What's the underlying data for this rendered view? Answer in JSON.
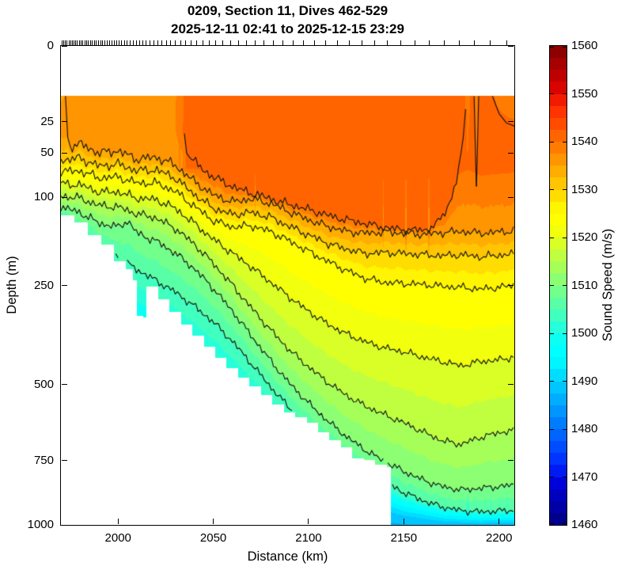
{
  "figure": {
    "title_line1": "0209, Section 11, Dives 462-529",
    "title_line2": "2025-12-11 02:41 to 2025-12-15 23:29",
    "background": "#ffffff",
    "contour_line_color": "#141414"
  },
  "axes": {
    "xlabel": "Distance (km)",
    "ylabel": "Depth (m)",
    "x_range": [
      1970,
      2208
    ],
    "depth_range": [
      0,
      1000
    ],
    "depth_scale": "sqrt",
    "x_ticks": [
      2000,
      2050,
      2100,
      2150,
      2200
    ],
    "x_tick_labels": [
      "2000",
      "2050",
      "2100",
      "2150",
      "2200"
    ],
    "y_ticks": [
      0,
      25,
      50,
      100,
      250,
      500,
      750,
      1000
    ],
    "y_tick_labels": [
      "0",
      "25",
      "50",
      "100",
      "250",
      "500",
      "750",
      "1000"
    ]
  },
  "colorbar": {
    "label": "Sound Speed (m/s)",
    "min": 1460,
    "max": 1560,
    "segment_step": 2.5,
    "tick_values": [
      1460,
      1470,
      1480,
      1490,
      1500,
      1510,
      1520,
      1530,
      1540,
      1550,
      1560
    ],
    "tick_labels": [
      "1460",
      "1470",
      "1480",
      "1490",
      "1500",
      "1510",
      "1520",
      "1530",
      "1540",
      "1550",
      "1560"
    ],
    "colormap": "jet"
  },
  "chart_data": {
    "type": "heatmap",
    "subtype": "filled-contour-ocean-section",
    "title": "0209, Section 11, Dives 462-529",
    "subtitle": "2025-12-11 02:41 to 2025-12-15 23:29",
    "xlabel": "Distance (km)",
    "ylabel": "Depth (m)",
    "value_label": "Sound Speed (m/s)",
    "x_units": "km",
    "y_units": "m",
    "value_units": "m/s",
    "surface_depth_m": 11,
    "band_step": 2.5,
    "contour_line_levels": [
      1540,
      1535,
      1530,
      1525,
      1520,
      1515,
      1510,
      1505
    ],
    "surface_values": [
      [
        1970,
        1534.7
      ],
      [
        1973,
        1535.2
      ],
      [
        1976,
        1536.5
      ],
      [
        1982,
        1536.8
      ],
      [
        1988,
        1536.6
      ],
      [
        1994,
        1536.9
      ],
      [
        2000,
        1536.6
      ],
      [
        2006,
        1536.9
      ],
      [
        2012,
        1537.0
      ],
      [
        2018,
        1537.1
      ],
      [
        2024,
        1537.2
      ],
      [
        2030,
        1537.4
      ],
      [
        2033,
        1538.0
      ],
      [
        2035,
        1540.6
      ],
      [
        2040,
        1541.1
      ],
      [
        2050,
        1541.4
      ],
      [
        2065,
        1541.6
      ],
      [
        2080,
        1541.8
      ],
      [
        2100,
        1541.9
      ],
      [
        2120,
        1541.8
      ],
      [
        2140,
        1541.5
      ],
      [
        2155,
        1541.2
      ],
      [
        2168,
        1541.0
      ],
      [
        2176,
        1540.7
      ],
      [
        2181,
        1540.6
      ],
      [
        2183.5,
        1539.3
      ],
      [
        2186,
        1540.6
      ],
      [
        2190,
        1540.7
      ],
      [
        2194,
        1540.5
      ],
      [
        2199,
        1539.8
      ],
      [
        2204,
        1539.4
      ],
      [
        2208,
        1539.2
      ]
    ],
    "values_30m": [
      [
        1970,
        1536.6
      ],
      [
        1985,
        1536.8
      ],
      [
        2000,
        1536.7
      ],
      [
        2015,
        1537.0
      ],
      [
        2030,
        1537.4
      ],
      [
        2035,
        1540.7
      ],
      [
        2050,
        1541.4
      ],
      [
        2080,
        1541.8
      ],
      [
        2110,
        1541.9
      ],
      [
        2140,
        1541.5
      ],
      [
        2168,
        1541.0
      ],
      [
        2181,
        1540.6
      ],
      [
        2183.5,
        1539.8
      ],
      [
        2186,
        1540.7
      ],
      [
        2195,
        1540.7
      ],
      [
        2202,
        1540.5
      ],
      [
        2208,
        1540.4
      ]
    ],
    "values_65m": [
      [
        1970,
        1535.6
      ],
      [
        1990,
        1535.7
      ],
      [
        2010,
        1535.9
      ],
      [
        2030,
        1536.2
      ],
      [
        2036,
        1540.3
      ],
      [
        2050,
        1540.9
      ],
      [
        2080,
        1541.2
      ],
      [
        2110,
        1541.2
      ],
      [
        2140,
        1541.0
      ],
      [
        2165,
        1540.8
      ],
      [
        2178,
        1540.5
      ],
      [
        2183.5,
        1540.1
      ],
      [
        2190,
        1540.5
      ],
      [
        2200,
        1540.4
      ],
      [
        2208,
        1540.3
      ]
    ],
    "isolines": {
      "1540": [
        [
          2034,
          11
        ],
        [
          2034.6,
          34
        ],
        [
          2037,
          52
        ],
        [
          2045,
          68
        ],
        [
          2055,
          81
        ],
        [
          2065,
          91
        ],
        [
          2075,
          98
        ],
        [
          2085,
          106
        ],
        [
          2095,
          113
        ],
        [
          2105,
          121
        ],
        [
          2115,
          129
        ],
        [
          2125,
          135
        ],
        [
          2135,
          141
        ],
        [
          2145,
          146
        ],
        [
          2155,
          148
        ],
        [
          2162,
          147
        ],
        [
          2167,
          139
        ],
        [
          2171,
          123
        ],
        [
          2175,
          101
        ],
        [
          2178,
          76
        ],
        [
          2181,
          40
        ],
        [
          2183,
          11
        ]
      ],
      "1535": [
        [
          1972.4,
          11
        ],
        [
          1973,
          26
        ],
        [
          1974,
          44
        ],
        [
          1980,
          42
        ],
        [
          1990,
          50
        ],
        [
          2000,
          48
        ],
        [
          2010,
          56
        ],
        [
          2020,
          54
        ],
        [
          2030,
          62
        ],
        [
          2040,
          80
        ],
        [
          2050,
          97
        ],
        [
          2060,
          106
        ],
        [
          2070,
          102
        ],
        [
          2080,
          108
        ],
        [
          2090,
          120
        ],
        [
          2100,
          132
        ],
        [
          2110,
          142
        ],
        [
          2120,
          150
        ],
        [
          2130,
          153
        ],
        [
          2140,
          151
        ],
        [
          2150,
          153
        ],
        [
          2160,
          155
        ],
        [
          2170,
          152
        ],
        [
          2180,
          150
        ],
        [
          2190,
          153
        ],
        [
          2200,
          151
        ],
        [
          2208,
          149
        ]
      ],
      "1530": [
        [
          1970,
          57
        ],
        [
          1980,
          55
        ],
        [
          1990,
          63
        ],
        [
          2000,
          61
        ],
        [
          2010,
          68
        ],
        [
          2020,
          67
        ],
        [
          2030,
          76
        ],
        [
          2040,
          96
        ],
        [
          2050,
          115
        ],
        [
          2060,
          124
        ],
        [
          2070,
          121
        ],
        [
          2080,
          128
        ],
        [
          2090,
          142
        ],
        [
          2100,
          156
        ],
        [
          2110,
          170
        ],
        [
          2120,
          180
        ],
        [
          2130,
          188
        ],
        [
          2140,
          186
        ],
        [
          2150,
          188
        ],
        [
          2160,
          190
        ],
        [
          2170,
          192
        ],
        [
          2180,
          190
        ],
        [
          2190,
          194
        ],
        [
          2200,
          191
        ],
        [
          2208,
          188
        ]
      ],
      "1525": [
        [
          1970,
          69
        ],
        [
          1980,
          68
        ],
        [
          1990,
          76
        ],
        [
          2000,
          75
        ],
        [
          2010,
          82
        ],
        [
          2020,
          82
        ],
        [
          2030,
          92
        ],
        [
          2040,
          112
        ],
        [
          2050,
          133
        ],
        [
          2060,
          143
        ],
        [
          2070,
          141
        ],
        [
          2080,
          150
        ],
        [
          2090,
          166
        ],
        [
          2100,
          184
        ],
        [
          2110,
          202
        ],
        [
          2120,
          220
        ],
        [
          2130,
          236
        ],
        [
          2140,
          244
        ],
        [
          2150,
          246
        ],
        [
          2160,
          248
        ],
        [
          2170,
          252
        ],
        [
          2180,
          254
        ],
        [
          2190,
          258
        ],
        [
          2200,
          254
        ],
        [
          2208,
          250
        ]
      ],
      "1520": [
        [
          1970,
          83
        ],
        [
          1980,
          84
        ],
        [
          1990,
          93
        ],
        [
          2000,
          93
        ],
        [
          2010,
          101
        ],
        [
          2020,
          103
        ],
        [
          2030,
          115
        ],
        [
          2040,
          137
        ],
        [
          2050,
          163
        ],
        [
          2060,
          187
        ],
        [
          2070,
          213
        ],
        [
          2080,
          243
        ],
        [
          2090,
          275
        ],
        [
          2100,
          307
        ],
        [
          2110,
          337
        ],
        [
          2120,
          362
        ],
        [
          2130,
          382
        ],
        [
          2140,
          398
        ],
        [
          2150,
          408
        ],
        [
          2160,
          422
        ],
        [
          2170,
          434
        ],
        [
          2180,
          446
        ],
        [
          2190,
          434
        ],
        [
          2200,
          430
        ],
        [
          2208,
          421
        ]
      ],
      "1515": [
        [
          1970,
          98
        ],
        [
          1980,
          101
        ],
        [
          1990,
          111
        ],
        [
          2000,
          113
        ],
        [
          2010,
          123
        ],
        [
          2020,
          129
        ],
        [
          2030,
          145
        ],
        [
          2040,
          171
        ],
        [
          2050,
          206
        ],
        [
          2060,
          249
        ],
        [
          2070,
          299
        ],
        [
          2080,
          351
        ],
        [
          2090,
          403
        ],
        [
          2100,
          449
        ],
        [
          2110,
          493
        ],
        [
          2120,
          533
        ],
        [
          2130,
          566
        ],
        [
          2140,
          593
        ],
        [
          2150,
          619
        ],
        [
          2160,
          649
        ],
        [
          2170,
          679
        ],
        [
          2180,
          692
        ],
        [
          2190,
          668
        ],
        [
          2200,
          652
        ],
        [
          2208,
          643
        ]
      ],
      "1510": [
        [
          1970,
          113
        ],
        [
          1980,
          121
        ],
        [
          1990,
          137
        ],
        [
          2000,
          143
        ],
        [
          2005,
          133
        ],
        [
          2010,
          153
        ],
        [
          2020,
          166
        ],
        [
          2030,
          187
        ],
        [
          2040,
          216
        ],
        [
          2050,
          256
        ],
        [
          2060,
          306
        ],
        [
          2070,
          366
        ],
        [
          2080,
          431
        ],
        [
          2090,
          496
        ],
        [
          2100,
          556
        ],
        [
          2110,
          613
        ],
        [
          2120,
          666
        ],
        [
          2130,
          713
        ],
        [
          2140,
          753
        ],
        [
          2150,
          789
        ],
        [
          2160,
          821
        ],
        [
          2170,
          846
        ],
        [
          2180,
          859
        ],
        [
          2190,
          853
        ],
        [
          2200,
          846
        ],
        [
          2208,
          841
        ]
      ],
      "1505": [
        [
          1970,
          127
        ],
        [
          1980,
          145
        ],
        [
          1990,
          168
        ],
        [
          2000,
          195
        ],
        [
          2010,
          218
        ],
        [
          2020,
          240
        ],
        [
          2030,
          264
        ],
        [
          2040,
          295
        ],
        [
          2050,
          332
        ],
        [
          2060,
          380
        ],
        [
          2070,
          440
        ],
        [
          2080,
          506
        ],
        [
          2090,
          571
        ],
        [
          2100,
          631
        ],
        [
          2110,
          689
        ],
        [
          2120,
          741
        ],
        [
          2130,
          789
        ],
        [
          2140,
          831
        ],
        [
          2150,
          869
        ],
        [
          2160,
          901
        ],
        [
          2170,
          926
        ],
        [
          2180,
          941
        ],
        [
          2190,
          946
        ],
        [
          2200,
          943
        ],
        [
          2208,
          939
        ]
      ]
    },
    "deep_isolines": {
      "1500": [
        [
          1970,
          210
        ],
        [
          1990,
          240
        ],
        [
          2010,
          285
        ],
        [
          2030,
          335
        ],
        [
          2050,
          420
        ],
        [
          2070,
          525
        ],
        [
          2090,
          635
        ],
        [
          2110,
          735
        ],
        [
          2130,
          825
        ],
        [
          2150,
          898
        ],
        [
          2170,
          938
        ],
        [
          2190,
          955
        ],
        [
          2208,
          952
        ]
      ],
      "1495": [
        [
          2090,
          720
        ],
        [
          2110,
          795
        ],
        [
          2130,
          866
        ],
        [
          2150,
          925
        ],
        [
          2170,
          958
        ],
        [
          2190,
          972
        ],
        [
          2208,
          970
        ]
      ],
      "1490": [
        [
          2130,
          920
        ],
        [
          2150,
          962
        ],
        [
          2170,
          985
        ],
        [
          2190,
          992
        ],
        [
          2208,
          990
        ]
      ]
    },
    "bottom_anchor": {
      "depth": 1040,
      "value": 1484.5
    },
    "seafloor": [
      [
        1970,
        125
      ],
      [
        1977,
        136
      ],
      [
        1984,
        156
      ],
      [
        1991,
        172
      ],
      [
        1998,
        202
      ],
      [
        2004,
        218
      ],
      [
        2008,
        240
      ],
      [
        2010,
        318
      ],
      [
        2013,
        322
      ],
      [
        2015,
        252
      ],
      [
        2021,
        280
      ],
      [
        2027,
        308
      ],
      [
        2033,
        338
      ],
      [
        2039,
        366
      ],
      [
        2045,
        395
      ],
      [
        2051,
        424
      ],
      [
        2057,
        452
      ],
      [
        2063,
        480
      ],
      [
        2069,
        506
      ],
      [
        2075,
        532
      ],
      [
        2081,
        560
      ],
      [
        2087,
        586
      ],
      [
        2093,
        602
      ],
      [
        2099,
        618
      ],
      [
        2105,
        650
      ],
      [
        2111,
        678
      ],
      [
        2117,
        702
      ],
      [
        2123,
        742
      ],
      [
        2129,
        748
      ],
      [
        2135,
        764
      ],
      [
        2141,
        772
      ],
      [
        2143,
        1005
      ],
      [
        2208,
        1005
      ]
    ],
    "special": {
      "v_spike": {
        "center": 2188.1,
        "half_width": 1.5,
        "tip_depth": 88,
        "cap_value": 1537.4
      },
      "v_spike_lines": [
        [
          [
            2186.9,
            11
          ],
          [
            2188.05,
            86
          ]
        ],
        [
          [
            2189.3,
            11
          ],
          [
            2188.15,
            86
          ]
        ]
      ],
      "corner_line_1540": [
        [
          2196.5,
          11
        ],
        [
          2200,
          20
        ],
        [
          2204,
          26
        ],
        [
          2208,
          28
        ]
      ]
    },
    "dive_tick_distances": [
      1970.6,
      1971.5,
      1972.4,
      1973.3,
      1974.2,
      1975.1,
      1976.0,
      1976.9,
      1977.8,
      1978.7,
      1979.6,
      1980.5,
      1981.5,
      1982.5,
      1983.5,
      1984.5,
      1985.5,
      1986.5,
      1987.5,
      1988.6,
      1989.7,
      1990.8,
      1991.9,
      1993.0,
      1994.2,
      1995.4,
      1996.6,
      1997.9,
      1999.2,
      2000.5,
      2001.9,
      2003.3,
      2004.8,
      2006.3,
      2007.9,
      2009.5,
      2011.2,
      2013.0,
      2014.8,
      2016.7,
      2018.7,
      2020.8,
      2023.0,
      2025.3,
      2027.7,
      2030.2,
      2032.8,
      2035.5,
      2038.4,
      2041.4,
      2044.6,
      2047.9,
      2051.4,
      2055.1,
      2059.0,
      2063.1,
      2067.4,
      2071.9,
      2076.6,
      2081.5,
      2086.6,
      2091.9,
      2097.4,
      2103.1,
      2109.0,
      2115.1,
      2121.4,
      2127.9,
      2134.6,
      2141.5,
      2148.6,
      2155.9,
      2163.4,
      2171.1,
      2179.0,
      2187.1,
      2195.4,
      2203.9
    ]
  }
}
